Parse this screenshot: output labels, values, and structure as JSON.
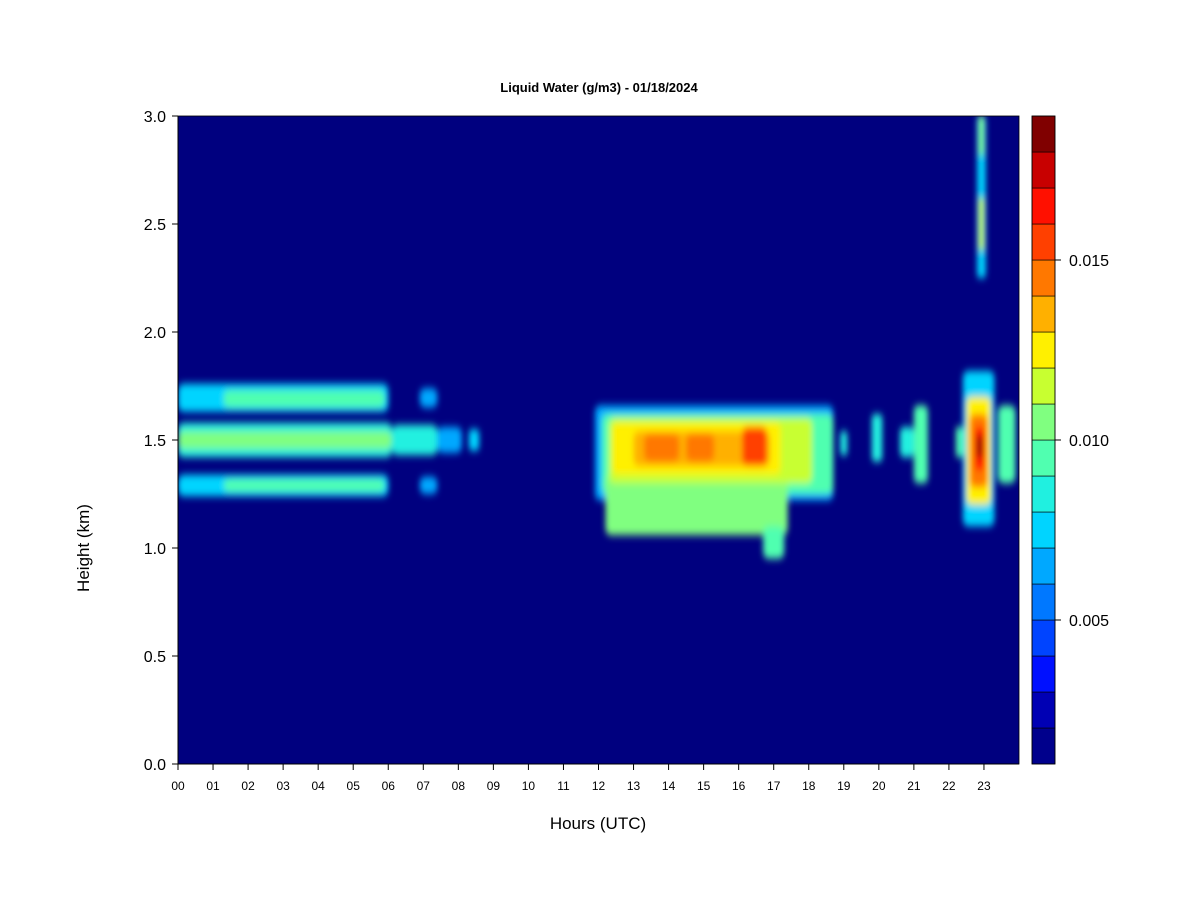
{
  "chart_data": {
    "type": "heatmap",
    "title": "Liquid Water (g/m3) - 01/18/2024",
    "xlabel": "Hours (UTC)",
    "ylabel": "Height (km)",
    "xlim": [
      0,
      24
    ],
    "ylim": [
      0,
      3
    ],
    "x_ticks": [
      {
        "value": 0,
        "label": "00"
      },
      {
        "value": 1,
        "label": "01"
      },
      {
        "value": 2,
        "label": "02"
      },
      {
        "value": 3,
        "label": "03"
      },
      {
        "value": 4,
        "label": "04"
      },
      {
        "value": 5,
        "label": "05"
      },
      {
        "value": 6,
        "label": "06"
      },
      {
        "value": 7,
        "label": "07"
      },
      {
        "value": 8,
        "label": "08"
      },
      {
        "value": 9,
        "label": "09"
      },
      {
        "value": 10,
        "label": "10"
      },
      {
        "value": 11,
        "label": "11"
      },
      {
        "value": 12,
        "label": "12"
      },
      {
        "value": 13,
        "label": "13"
      },
      {
        "value": 14,
        "label": "14"
      },
      {
        "value": 15,
        "label": "15"
      },
      {
        "value": 16,
        "label": "16"
      },
      {
        "value": 17,
        "label": "17"
      },
      {
        "value": 18,
        "label": "18"
      },
      {
        "value": 19,
        "label": "19"
      },
      {
        "value": 20,
        "label": "20"
      },
      {
        "value": 21,
        "label": "21"
      },
      {
        "value": 22,
        "label": "22"
      },
      {
        "value": 23,
        "label": "23"
      }
    ],
    "y_ticks": [
      {
        "value": 0,
        "label": "0.0"
      },
      {
        "value": 0.5,
        "label": "0.5"
      },
      {
        "value": 1,
        "label": "1.0"
      },
      {
        "value": 1.5,
        "label": "1.5"
      },
      {
        "value": 2,
        "label": "2.0"
      },
      {
        "value": 2.5,
        "label": "2.5"
      },
      {
        "value": 3,
        "label": "3.0"
      }
    ],
    "background_color": "#00007f",
    "colorbar": {
      "range": [
        0.001,
        0.019
      ],
      "levels": [
        0.001,
        0.002,
        0.003,
        0.004,
        0.005,
        0.006,
        0.007,
        0.008,
        0.009,
        0.01,
        0.011,
        0.012,
        0.013,
        0.014,
        0.015,
        0.016,
        0.017,
        0.018,
        0.019
      ],
      "colors": [
        "#00008c",
        "#0000b4",
        "#0010ff",
        "#0044ff",
        "#0078ff",
        "#00a8ff",
        "#00d4ff",
        "#20f0e0",
        "#50ffb0",
        "#80ff80",
        "#c8ff30",
        "#fff000",
        "#ffb000",
        "#ff7800",
        "#ff4000",
        "#ff1000",
        "#c80000",
        "#800000"
      ],
      "ticks": [
        {
          "value": 0.005,
          "label": "0.005"
        },
        {
          "value": 0.01,
          "label": "0.010"
        },
        {
          "value": 0.015,
          "label": "0.015"
        }
      ]
    },
    "cloud_regions": [
      {
        "x": [
          0,
          6.1
        ],
        "y": [
          1.42,
          1.58
        ],
        "value": 0.008
      },
      {
        "x": [
          0,
          6.1
        ],
        "y": [
          1.46,
          1.54
        ],
        "value": 0.0105
      },
      {
        "x": [
          0,
          6.0
        ],
        "y": [
          1.63,
          1.76
        ],
        "value": 0.0075
      },
      {
        "x": [
          1.3,
          5.9
        ],
        "y": [
          1.65,
          1.73
        ],
        "value": 0.0095
      },
      {
        "x": [
          0,
          6.0
        ],
        "y": [
          1.24,
          1.34
        ],
        "value": 0.0075
      },
      {
        "x": [
          1.3,
          5.9
        ],
        "y": [
          1.26,
          1.32
        ],
        "value": 0.0095
      },
      {
        "x": [
          6.1,
          7.4
        ],
        "y": [
          1.43,
          1.57
        ],
        "value": 0.0085
      },
      {
        "x": [
          6.9,
          7.4
        ],
        "y": [
          1.65,
          1.74
        ],
        "value": 0.006
      },
      {
        "x": [
          6.9,
          7.4
        ],
        "y": [
          1.25,
          1.33
        ],
        "value": 0.006
      },
      {
        "x": [
          7.4,
          8.1
        ],
        "y": [
          1.44,
          1.56
        ],
        "value": 0.006
      },
      {
        "x": [
          8.3,
          8.6
        ],
        "y": [
          1.45,
          1.55
        ],
        "value": 0.007
      },
      {
        "x": [
          11.9,
          18.7
        ],
        "y": [
          1.22,
          1.66
        ],
        "value": 0.006
      },
      {
        "x": [
          12.1,
          18.7
        ],
        "y": [
          1.25,
          1.62
        ],
        "value": 0.0095
      },
      {
        "x": [
          12.2,
          17.4
        ],
        "y": [
          1.06,
          1.34
        ],
        "value": 0.0105
      },
      {
        "x": [
          12.3,
          18.1
        ],
        "y": [
          1.3,
          1.6
        ],
        "value": 0.0118
      },
      {
        "x": [
          12.4,
          17.2
        ],
        "y": [
          1.34,
          1.58
        ],
        "value": 0.0128
      },
      {
        "x": [
          13.0,
          16.9
        ],
        "y": [
          1.38,
          1.54
        ],
        "value": 0.0138
      },
      {
        "x": [
          13.3,
          14.3
        ],
        "y": [
          1.4,
          1.53
        ],
        "value": 0.0148
      },
      {
        "x": [
          14.5,
          15.3
        ],
        "y": [
          1.4,
          1.53
        ],
        "value": 0.0145
      },
      {
        "x": [
          16.1,
          16.8
        ],
        "y": [
          1.38,
          1.56
        ],
        "value": 0.0152
      },
      {
        "x": [
          16.7,
          17.3
        ],
        "y": [
          0.95,
          1.1
        ],
        "value": 0.0095
      },
      {
        "x": [
          18.9,
          19.1
        ],
        "y": [
          1.43,
          1.54
        ],
        "value": 0.008
      },
      {
        "x": [
          19.8,
          20.1
        ],
        "y": [
          1.4,
          1.62
        ],
        "value": 0.008
      },
      {
        "x": [
          20.6,
          21.0
        ],
        "y": [
          1.42,
          1.56
        ],
        "value": 0.008
      },
      {
        "x": [
          21.0,
          21.4
        ],
        "y": [
          1.3,
          1.66
        ],
        "value": 0.0095
      },
      {
        "x": [
          22.2,
          22.4
        ],
        "y": [
          1.42,
          1.56
        ],
        "value": 0.009
      },
      {
        "x": [
          23.4,
          23.9
        ],
        "y": [
          1.3,
          1.66
        ],
        "value": 0.0095
      },
      {
        "x": [
          22.4,
          23.3
        ],
        "y": [
          1.1,
          1.82
        ],
        "value": 0.0075
      },
      {
        "x": [
          22.5,
          23.2
        ],
        "y": [
          1.2,
          1.7
        ],
        "value": 0.0125
      },
      {
        "x": [
          22.6,
          23.1
        ],
        "y": [
          1.28,
          1.62
        ],
        "value": 0.0145
      },
      {
        "x": [
          22.75,
          23.0
        ],
        "y": [
          1.36,
          1.56
        ],
        "value": 0.0165
      },
      {
        "x": [
          22.8,
          22.95
        ],
        "y": [
          1.42,
          1.52
        ],
        "value": 0.0182
      },
      {
        "x": [
          22.8,
          23.05
        ],
        "y": [
          2.25,
          3.0
        ],
        "value": 0.0075
      },
      {
        "x": [
          22.85,
          23.0
        ],
        "y": [
          2.38,
          2.62
        ],
        "value": 0.0115
      },
      {
        "x": [
          22.85,
          23.0
        ],
        "y": [
          2.82,
          3.0
        ],
        "value": 0.0105
      }
    ]
  }
}
